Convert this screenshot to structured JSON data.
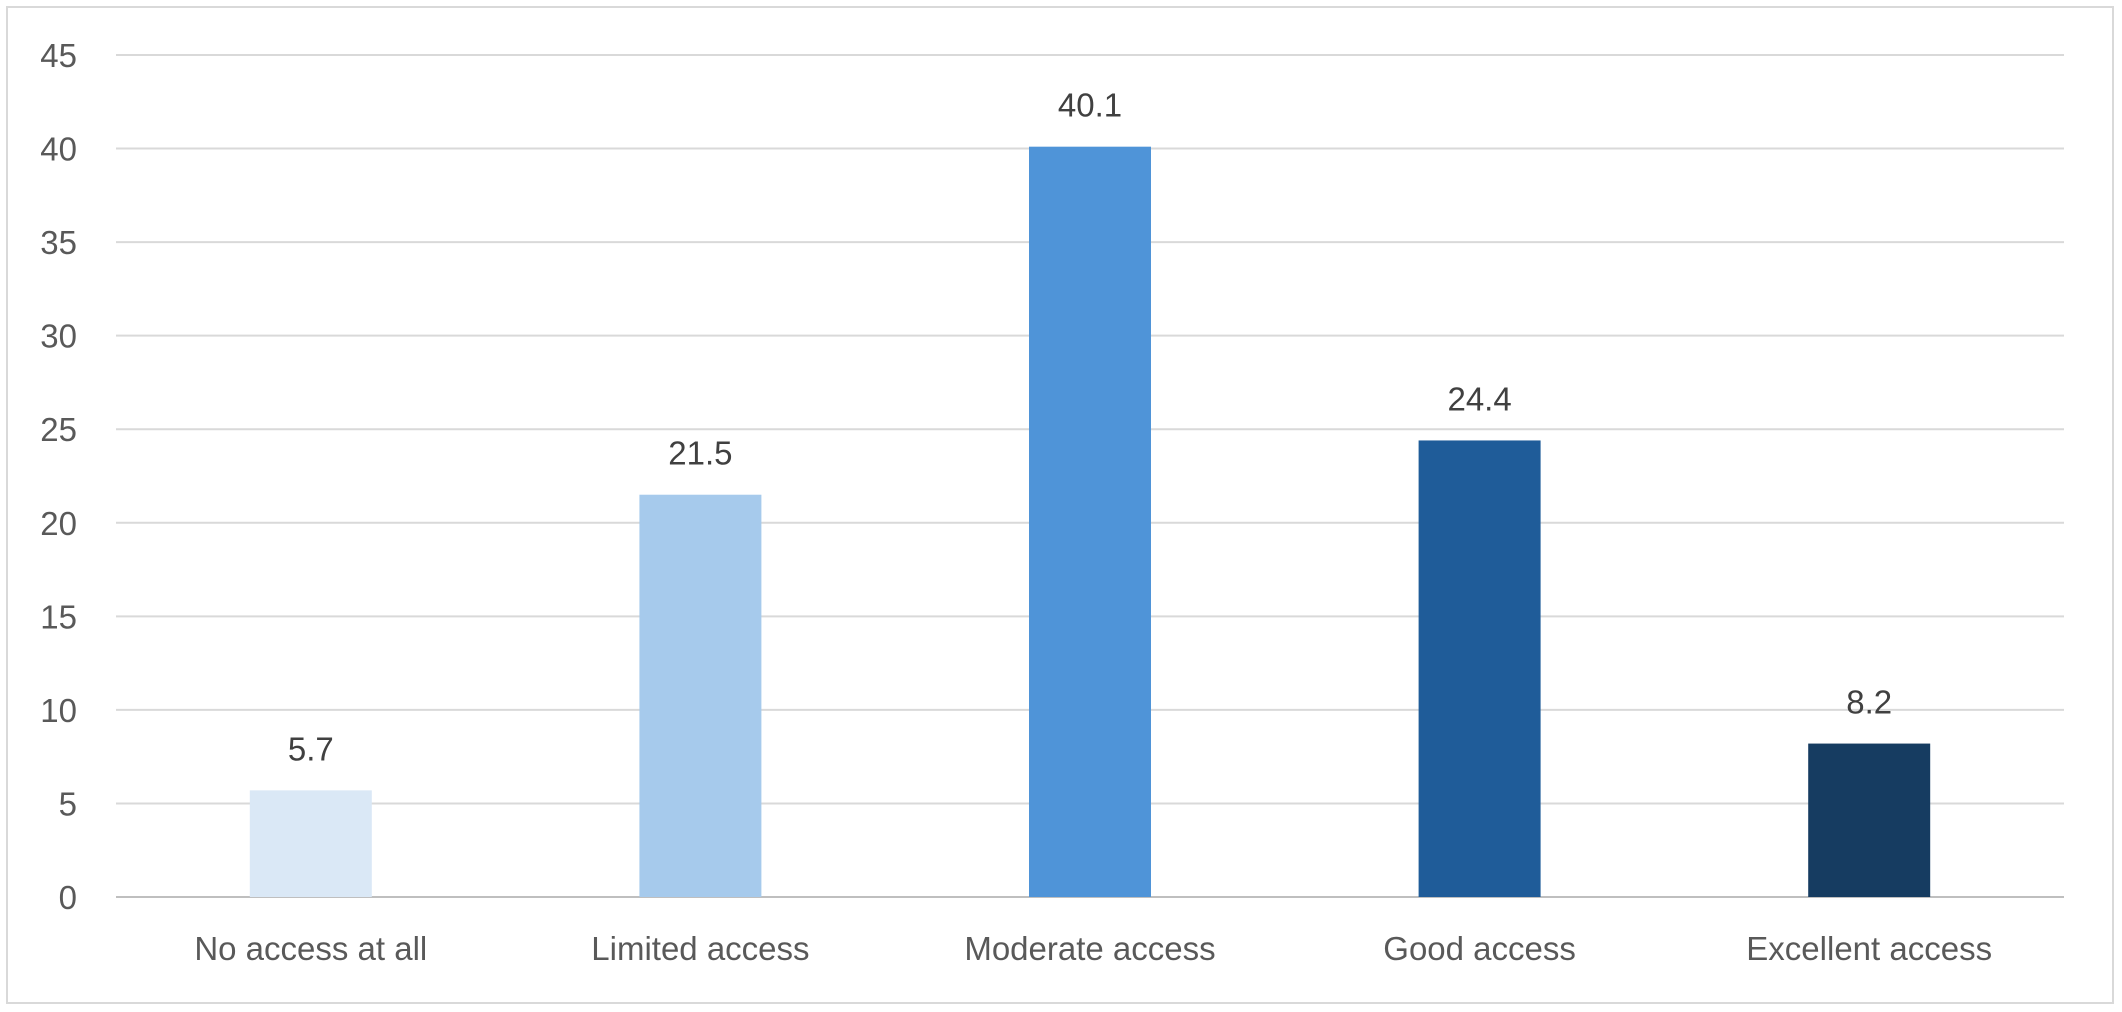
{
  "chart_data": {
    "type": "bar",
    "categories": [
      "No access at all",
      "Limited access",
      "Moderate access",
      "Good access",
      "Excellent access"
    ],
    "values": [
      5.7,
      21.5,
      40.1,
      24.4,
      8.2
    ],
    "value_labels": [
      "5.7",
      "21.5",
      "40.1",
      "24.4",
      "8.2"
    ],
    "bar_colors": [
      "#dae8f6",
      "#a6caec",
      "#4f94d8",
      "#1f5c99",
      "#163c61"
    ],
    "ylim": [
      0,
      45
    ],
    "yticks": [
      0,
      5,
      10,
      15,
      20,
      25,
      30,
      35,
      40,
      45
    ],
    "grid": true,
    "legend": "none",
    "title": "",
    "xlabel": "",
    "ylabel": ""
  }
}
